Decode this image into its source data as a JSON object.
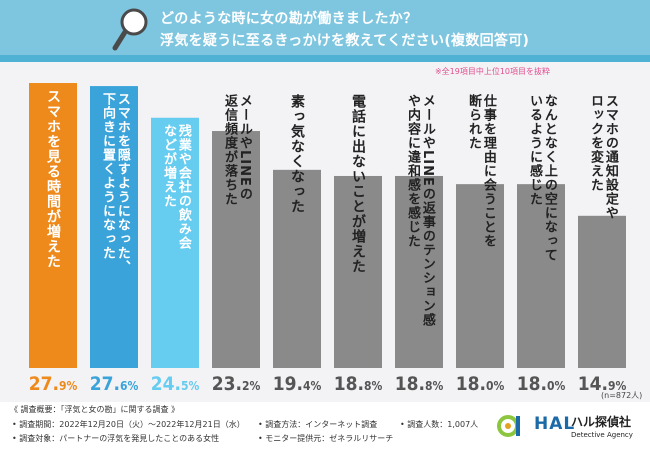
{
  "header": {
    "title_line1": "どのような時に女の勘が働きましたか？",
    "title_line2": "浮気を疑うに至るきっかけを教えてください(複数回答可)",
    "bg_color": "#7ec6df"
  },
  "note": "※全19項目中上位10項目を抜粋",
  "sample_size": "(n=872人)",
  "chart_data": {
    "type": "bar",
    "categories": [
      "スマホを見る時間が増えた",
      "スマホを隠すようになった、下向きに置くようになった",
      "残業や会社の飲み会などが増えた",
      "メールやLINEの返信頻度が落ちた",
      "素っ気なくなった",
      "電話に出ないことが増えた",
      "メールやLINEの返事のテンション感や内容に違和感を感じた",
      "仕事を理由に会うことを断られた",
      "なんとなく上の空になっているように感じた",
      "スマホの通知設定やロックを変えた"
    ],
    "label_lines": [
      [
        "スマホを見る時間が増えた"
      ],
      [
        "スマホを隠すようになった、",
        "下向きに置くようになった"
      ],
      [
        "残業や会社の飲み会",
        "などが増えた"
      ],
      [
        "メールやLINEの",
        "返信頻度が落ちた"
      ],
      [
        "素っ気なくなった"
      ],
      [
        "電話に出ないことが増えた"
      ],
      [
        "メールやLINEの返事のテンション感",
        "や内容に違和感を感じた"
      ],
      [
        "仕事を理由に会うことを",
        "断られた"
      ],
      [
        "なんとなく上の空になって",
        "いるように感じた"
      ],
      [
        "スマホの通知設定や",
        "ロックを変えた"
      ]
    ],
    "values": [
      27.9,
      27.6,
      24.5,
      23.2,
      19.4,
      18.8,
      18.8,
      18.0,
      18.0,
      14.9
    ],
    "value_labels": [
      {
        "int": "27.",
        "dec": "9",
        "unit": "%"
      },
      {
        "int": "27.",
        "dec": "6",
        "unit": "%"
      },
      {
        "int": "24.",
        "dec": "5",
        "unit": "%"
      },
      {
        "int": "23.",
        "dec": "2",
        "unit": "%"
      },
      {
        "int": "19.",
        "dec": "4",
        "unit": "%"
      },
      {
        "int": "18.",
        "dec": "8",
        "unit": "%"
      },
      {
        "int": "18.",
        "dec": "8",
        "unit": "%"
      },
      {
        "int": "18.",
        "dec": "0",
        "unit": "%"
      },
      {
        "int": "18.",
        "dec": "0",
        "unit": "%"
      },
      {
        "int": "14.",
        "dec": "9",
        "unit": "%"
      }
    ],
    "colors": [
      "#ee8a1c",
      "#3aa3d9",
      "#66ccf0",
      "#8a8a8a",
      "#8a8a8a",
      "#8a8a8a",
      "#8a8a8a",
      "#8a8a8a",
      "#8a8a8a",
      "#8a8a8a"
    ],
    "value_colors": [
      "#ee8a1c",
      "#3aa3d9",
      "#66ccf0",
      "#555555",
      "#555555",
      "#555555",
      "#555555",
      "#555555",
      "#555555",
      "#555555"
    ],
    "ylim": [
      0,
      30
    ],
    "grid": false,
    "title": "",
    "xlabel": "",
    "ylabel": ""
  },
  "footer": {
    "title": "《 調査概要：「浮気と女の勘」に関する調査 》",
    "period": "• 調査期間：2022年12月20日（火）～2022年12月21日（水）",
    "method": "• 調査方法：インターネット調査",
    "count": "• 調査人数：1,007人",
    "target": "• 調査対象：パートナーの浮気を発見したことのある女性",
    "provider": "• モニター提供元：ゼネラルリサーチ",
    "logo_mark": "HAL",
    "logo_name": "ハル探偵社",
    "logo_sub": "Detective Agency"
  }
}
